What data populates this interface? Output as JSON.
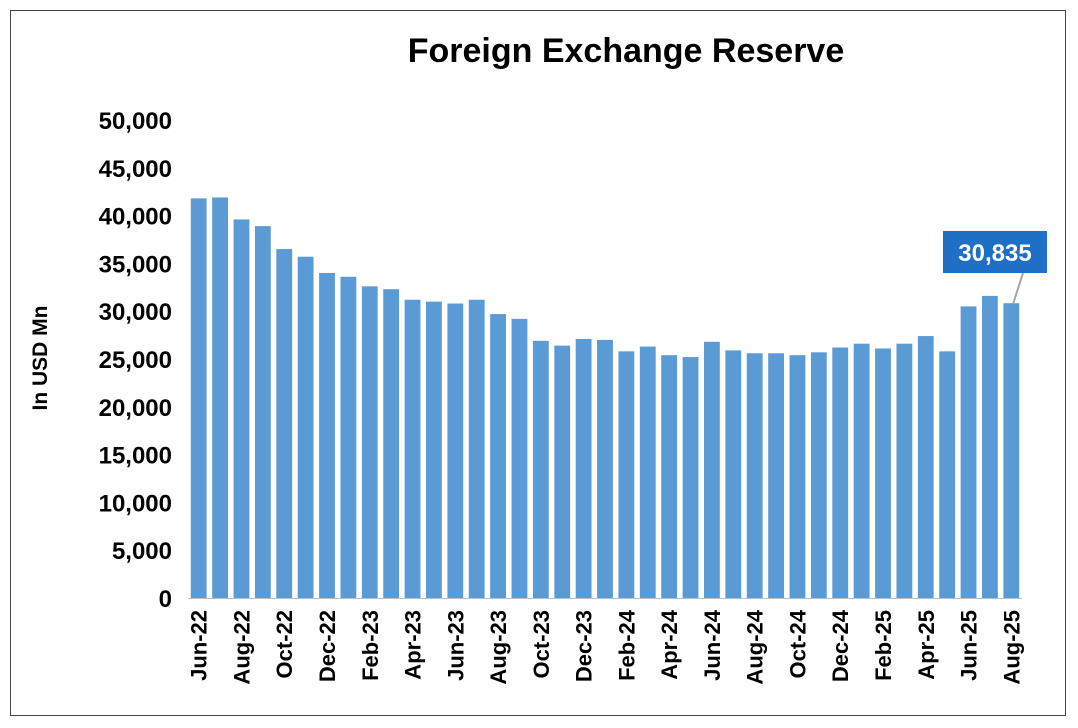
{
  "chart_data": {
    "type": "bar",
    "title": "Foreign Exchange Reserve",
    "ylabel": "In USD Mn",
    "xlabel": "",
    "ylim": [
      0,
      50000
    ],
    "yticks": [
      0,
      5000,
      10000,
      15000,
      20000,
      25000,
      30000,
      35000,
      40000,
      45000,
      50000
    ],
    "ytick_labels": [
      "0",
      "5,000",
      "10,000",
      "15,000",
      "20,000",
      "25,000",
      "30,000",
      "35,000",
      "40,000",
      "45,000",
      "50,000"
    ],
    "categories": [
      "Jun-22",
      "Jul-22",
      "Aug-22",
      "Sep-22",
      "Oct-22",
      "Nov-22",
      "Dec-22",
      "Jan-23",
      "Feb-23",
      "Mar-23",
      "Apr-23",
      "May-23",
      "Jun-23",
      "Jul-23",
      "Aug-23",
      "Sep-23",
      "Oct-23",
      "Nov-23",
      "Dec-23",
      "Jan-24",
      "Feb-24",
      "Mar-24",
      "Apr-24",
      "May-24",
      "Jun-24",
      "Jul-24",
      "Aug-24",
      "Sep-24",
      "Oct-24",
      "Nov-24",
      "Dec-24",
      "Jan-25",
      "Feb-25",
      "Mar-25",
      "Apr-25",
      "May-25",
      "Jun-25",
      "Jul-25",
      "Aug-25"
    ],
    "visible_tick_labels": [
      "Jun-22",
      "Aug-22",
      "Oct-22",
      "Dec-22",
      "Feb-23",
      "Apr-23",
      "Jun-23",
      "Aug-23",
      "Oct-23",
      "Dec-23",
      "Feb-24",
      "Apr-24",
      "Jun-24",
      "Aug-24",
      "Oct-24",
      "Dec-24",
      "Feb-25",
      "Apr-25",
      "Jun-25",
      "Aug-25"
    ],
    "values": [
      41800,
      41900,
      39600,
      38900,
      36500,
      35700,
      34000,
      33600,
      32600,
      32300,
      31200,
      31000,
      30800,
      31200,
      29700,
      29200,
      26900,
      26400,
      27100,
      27000,
      25800,
      26300,
      25400,
      25200,
      26800,
      25900,
      25600,
      25600,
      25400,
      25700,
      26200,
      26600,
      26100,
      26600,
      27400,
      25800,
      30500,
      31600,
      30835
    ],
    "series_color": "#5B9BD5",
    "grid": false,
    "annotation": {
      "label": "30,835",
      "category": "Aug-25",
      "value": 30835,
      "box_color": "#1F6FC5"
    }
  }
}
